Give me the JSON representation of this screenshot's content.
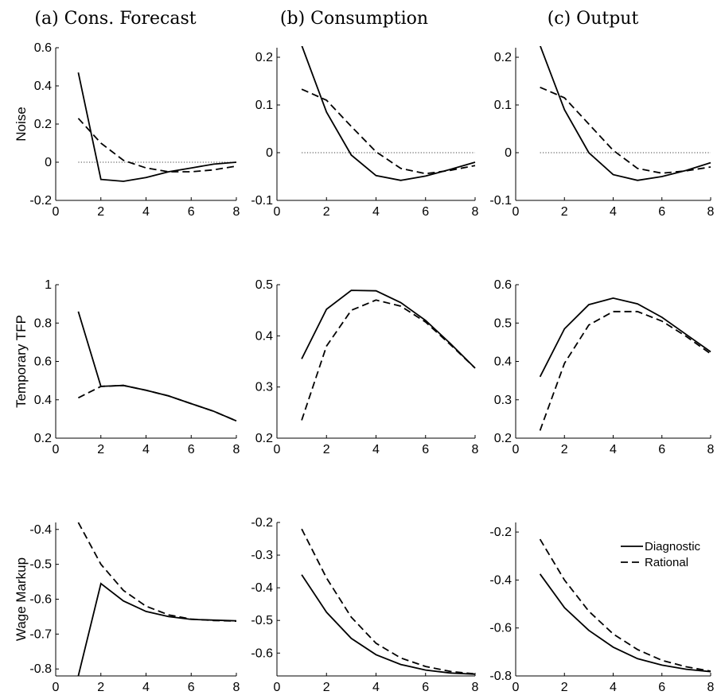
{
  "column_titles": [
    "(a) Cons. Forecast",
    "(b) Consumption",
    "(c) Output"
  ],
  "row_labels": [
    "Noise",
    "Temporary TFP",
    "Wage Markup"
  ],
  "legend": {
    "diagnostic": "Diagnostic",
    "rational": "Rational",
    "placement": "top-right of panel (c) Wage Markup"
  },
  "style": {
    "diagnostic_line": "solid",
    "rational_line": "dashed",
    "zero_line": "dotted",
    "line_color": "#000000"
  },
  "chart_data": [
    {
      "type": "line",
      "row": 0,
      "col": 0,
      "x": [
        1,
        2,
        3,
        4,
        5,
        6,
        7,
        8
      ],
      "xlim": [
        0,
        8
      ],
      "ylim": [
        -0.2,
        0.6
      ],
      "xticks": [
        "0",
        "2",
        "4",
        "6",
        "8"
      ],
      "yticks": [
        "-0.2",
        "0",
        "0.2",
        "0.4",
        "0.6"
      ],
      "zero_line": true,
      "series": [
        {
          "name": "Diagnostic",
          "values": [
            0.47,
            -0.09,
            -0.1,
            -0.08,
            -0.05,
            -0.03,
            -0.01,
            0.0
          ]
        },
        {
          "name": "Rational",
          "values": [
            0.23,
            0.1,
            0.01,
            -0.03,
            -0.05,
            -0.05,
            -0.04,
            -0.02
          ]
        }
      ]
    },
    {
      "type": "line",
      "row": 0,
      "col": 1,
      "x": [
        1,
        2,
        3,
        4,
        5,
        6,
        7,
        8
      ],
      "xlim": [
        0,
        8
      ],
      "ylim": [
        -0.1,
        0.22
      ],
      "xticks": [
        "0",
        "2",
        "4",
        "6",
        "8"
      ],
      "yticks": [
        "-0.1",
        "0",
        "0.1",
        "0.2"
      ],
      "zero_line": true,
      "series": [
        {
          "name": "Diagnostic",
          "values": [
            0.225,
            0.085,
            -0.005,
            -0.048,
            -0.058,
            -0.049,
            -0.035,
            -0.02
          ]
        },
        {
          "name": "Rational",
          "values": [
            0.133,
            0.11,
            0.055,
            0.002,
            -0.033,
            -0.044,
            -0.037,
            -0.027
          ]
        }
      ]
    },
    {
      "type": "line",
      "row": 0,
      "col": 2,
      "x": [
        1,
        2,
        3,
        4,
        5,
        6,
        7,
        8
      ],
      "xlim": [
        0,
        8
      ],
      "ylim": [
        -0.1,
        0.22
      ],
      "xticks": [
        "0",
        "2",
        "4",
        "6",
        "8"
      ],
      "yticks": [
        "-0.1",
        "0",
        "0.1",
        "0.2"
      ],
      "zero_line": true,
      "series": [
        {
          "name": "Diagnostic",
          "values": [
            0.225,
            0.09,
            0.0,
            -0.046,
            -0.058,
            -0.05,
            -0.037,
            -0.021
          ]
        },
        {
          "name": "Rational",
          "values": [
            0.137,
            0.115,
            0.06,
            0.005,
            -0.033,
            -0.043,
            -0.038,
            -0.03
          ]
        }
      ]
    },
    {
      "type": "line",
      "row": 1,
      "col": 0,
      "x": [
        1,
        2,
        3,
        4,
        5,
        6,
        7,
        8
      ],
      "xlim": [
        0,
        8
      ],
      "ylim": [
        0.2,
        1.0
      ],
      "xticks": [
        "0",
        "2",
        "4",
        "6",
        "8"
      ],
      "yticks": [
        "0.2",
        "0.4",
        "0.6",
        "0.8",
        "1"
      ],
      "zero_line": false,
      "series": [
        {
          "name": "Diagnostic",
          "values": [
            0.86,
            0.47,
            0.475,
            0.45,
            0.42,
            0.38,
            0.34,
            0.29
          ]
        },
        {
          "name": "Rational",
          "values": [
            0.41,
            0.47,
            0.475,
            0.45,
            0.42,
            0.38,
            0.34,
            0.29
          ]
        }
      ]
    },
    {
      "type": "line",
      "row": 1,
      "col": 1,
      "x": [
        1,
        2,
        3,
        4,
        5,
        6,
        7,
        8
      ],
      "xlim": [
        0,
        8
      ],
      "ylim": [
        0.2,
        0.5
      ],
      "xticks": [
        "0",
        "2",
        "4",
        "6",
        "8"
      ],
      "yticks": [
        "0.2",
        "0.3",
        "0.4",
        "0.5"
      ],
      "zero_line": false,
      "series": [
        {
          "name": "Diagnostic",
          "values": [
            0.355,
            0.452,
            0.489,
            0.488,
            0.465,
            0.43,
            0.385,
            0.337
          ]
        },
        {
          "name": "Rational",
          "values": [
            0.235,
            0.38,
            0.45,
            0.47,
            0.458,
            0.427,
            0.383,
            0.337
          ]
        }
      ]
    },
    {
      "type": "line",
      "row": 1,
      "col": 2,
      "x": [
        1,
        2,
        3,
        4,
        5,
        6,
        7,
        8
      ],
      "xlim": [
        0,
        8
      ],
      "ylim": [
        0.2,
        0.6
      ],
      "xticks": [
        "0",
        "2",
        "4",
        "6",
        "8"
      ],
      "yticks": [
        "0.2",
        "0.3",
        "0.4",
        "0.5",
        "0.6"
      ],
      "zero_line": false,
      "series": [
        {
          "name": "Diagnostic",
          "values": [
            0.36,
            0.485,
            0.548,
            0.565,
            0.55,
            0.515,
            0.47,
            0.425
          ]
        },
        {
          "name": "Rational",
          "values": [
            0.22,
            0.395,
            0.495,
            0.53,
            0.53,
            0.505,
            0.465,
            0.42
          ]
        }
      ]
    },
    {
      "type": "line",
      "row": 2,
      "col": 0,
      "x": [
        1,
        2,
        3,
        4,
        5,
        6,
        7,
        8
      ],
      "xlim": [
        0,
        8
      ],
      "ylim": [
        -0.82,
        -0.38
      ],
      "xticks": [
        "0",
        "2",
        "4",
        "6",
        "8"
      ],
      "yticks": [
        "-0.8",
        "-0.7",
        "-0.6",
        "-0.5",
        "-0.4"
      ],
      "zero_line": false,
      "series": [
        {
          "name": "Diagnostic",
          "values": [
            -0.82,
            -0.555,
            -0.605,
            -0.635,
            -0.65,
            -0.658,
            -0.66,
            -0.662
          ]
        },
        {
          "name": "Rational",
          "values": [
            -0.38,
            -0.5,
            -0.575,
            -0.62,
            -0.645,
            -0.657,
            -0.661,
            -0.663
          ]
        }
      ]
    },
    {
      "type": "line",
      "row": 2,
      "col": 1,
      "x": [
        1,
        2,
        3,
        4,
        5,
        6,
        7,
        8
      ],
      "xlim": [
        0,
        8
      ],
      "ylim": [
        -0.67,
        -0.2
      ],
      "xticks": [
        "0",
        "2",
        "4",
        "6",
        "8"
      ],
      "yticks": [
        "-0.6",
        "-0.5",
        "-0.4",
        "-0.3",
        "-0.2"
      ],
      "zero_line": false,
      "series": [
        {
          "name": "Diagnostic",
          "values": [
            -0.36,
            -0.475,
            -0.555,
            -0.605,
            -0.635,
            -0.652,
            -0.661,
            -0.665
          ]
        },
        {
          "name": "Rational",
          "values": [
            -0.22,
            -0.37,
            -0.49,
            -0.57,
            -0.615,
            -0.641,
            -0.656,
            -0.664
          ]
        }
      ]
    },
    {
      "type": "line",
      "row": 2,
      "col": 2,
      "x": [
        1,
        2,
        3,
        4,
        5,
        6,
        7,
        8
      ],
      "xlim": [
        0,
        8
      ],
      "ylim": [
        -0.8,
        -0.16
      ],
      "xticks": [
        "0",
        "2",
        "4",
        "6",
        "8"
      ],
      "yticks": [
        "-0.8",
        "-0.6",
        "-0.4",
        "-0.2"
      ],
      "zero_line": false,
      "series": [
        {
          "name": "Diagnostic",
          "values": [
            -0.375,
            -0.515,
            -0.61,
            -0.68,
            -0.728,
            -0.755,
            -0.772,
            -0.782
          ]
        },
        {
          "name": "Rational",
          "values": [
            -0.23,
            -0.4,
            -0.53,
            -0.625,
            -0.69,
            -0.735,
            -0.762,
            -0.78
          ]
        }
      ]
    }
  ]
}
